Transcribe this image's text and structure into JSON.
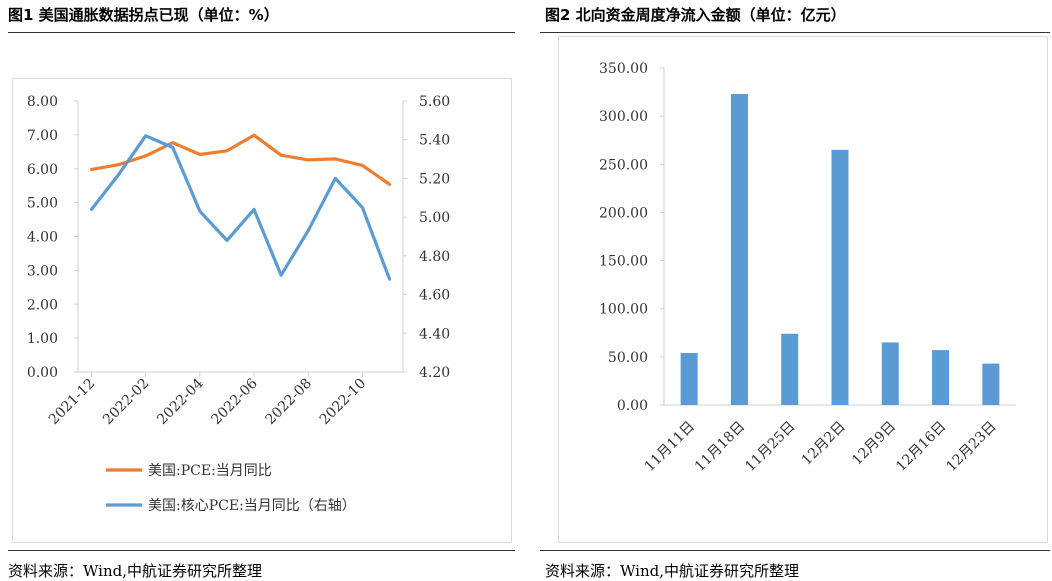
{
  "left": {
    "title": "图1  美国通胀数据拐点已现（单位：%）",
    "source": "资料来源：Wind,中航证券研究所整理"
  },
  "right": {
    "title": "图2  北向资金周度净流入金额（单位：亿元）",
    "source": "资料来源：Wind,中航证券研究所整理"
  },
  "chart_data": [
    {
      "type": "line",
      "title": "图1  美国通胀数据拐点已现（单位：%）",
      "x": [
        "2021-12",
        "2022-01",
        "2022-02",
        "2022-03",
        "2022-04",
        "2022-05",
        "2022-06",
        "2022-07",
        "2022-08",
        "2022-09",
        "2022-10",
        "2022-11"
      ],
      "x_tick_labels": [
        "2021-12",
        "2022-02",
        "2022-04",
        "2022-06",
        "2022-08",
        "2022-10"
      ],
      "y_left_ticks": [
        "0.00",
        "1.00",
        "2.00",
        "3.00",
        "4.00",
        "5.00",
        "6.00",
        "7.00",
        "8.00"
      ],
      "y_right_ticks": [
        "4.20",
        "4.40",
        "4.60",
        "4.80",
        "5.00",
        "5.20",
        "5.40",
        "5.60"
      ],
      "ylim_left": [
        0,
        8
      ],
      "ylim_right": [
        4.2,
        5.6
      ],
      "series": [
        {
          "name": "美国:PCE:当月同比",
          "axis": "left",
          "color": "#ED7D31",
          "values": [
            5.98,
            6.12,
            6.38,
            6.77,
            6.42,
            6.53,
            6.99,
            6.4,
            6.26,
            6.29,
            6.1,
            5.54
          ]
        },
        {
          "name": "美国:核心PCE:当月同比（右轴）",
          "axis": "right",
          "color": "#5B9BD5",
          "values": [
            5.04,
            5.22,
            5.42,
            5.36,
            5.03,
            4.88,
            5.04,
            4.7,
            4.93,
            5.2,
            5.05,
            4.68
          ]
        }
      ],
      "legend_position": "bottom",
      "grid": false
    },
    {
      "type": "bar",
      "title": "图2  北向资金周度净流入金额（单位：亿元）",
      "categories": [
        "11月11日",
        "11月18日",
        "11月25日",
        "12月2日",
        "12月9日",
        "12月16日",
        "12月23日"
      ],
      "values": [
        54,
        323,
        74,
        265,
        65,
        57,
        43
      ],
      "y_ticks": [
        "0.00",
        "50.00",
        "100.00",
        "150.00",
        "200.00",
        "250.00",
        "300.00",
        "350.00"
      ],
      "ylim": [
        0,
        350
      ],
      "color": "#5B9BD5",
      "grid": false
    }
  ]
}
